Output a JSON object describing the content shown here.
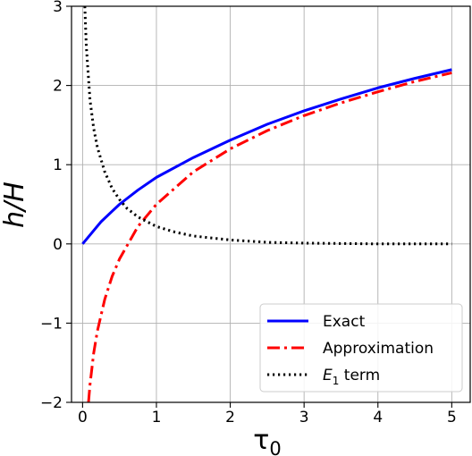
{
  "chart_data": {
    "type": "line",
    "xlabel": "τ",
    "xlabel_sub": "0",
    "ylabel": "h/H",
    "xlim": [
      -0.15,
      5.25
    ],
    "ylim": [
      -2,
      3
    ],
    "xticks": [
      0,
      1,
      2,
      3,
      4,
      5
    ],
    "yticks": [
      -2,
      -1,
      0,
      1,
      2,
      3
    ],
    "xtick_labels": [
      "0",
      "1",
      "2",
      "3",
      "4",
      "5"
    ],
    "ytick_labels": [
      "−2",
      "−1",
      "0",
      "1",
      "2",
      "3"
    ],
    "grid": true,
    "legend_position": "bottom-right",
    "series": [
      {
        "name": "Exact",
        "color": "#0000ff",
        "style": "solid",
        "x": [
          0,
          0.25,
          0.5,
          0.75,
          1.0,
          1.5,
          2.0,
          2.5,
          3.0,
          3.5,
          4.0,
          4.5,
          5.0
        ],
        "y": [
          0.0,
          0.28,
          0.5,
          0.68,
          0.84,
          1.09,
          1.31,
          1.51,
          1.68,
          1.83,
          1.97,
          2.09,
          2.2
        ]
      },
      {
        "name": "Approximation",
        "color": "#ff0000",
        "style": "dashdot",
        "x": [
          0.08,
          0.1,
          0.15,
          0.2,
          0.3,
          0.4,
          0.5,
          0.75,
          1.0,
          1.5,
          2.0,
          2.5,
          3.0,
          3.5,
          4.0,
          4.5,
          5.0
        ],
        "y": [
          -2.0,
          -1.78,
          -1.38,
          -1.1,
          -0.7,
          -0.41,
          -0.19,
          0.22,
          0.5,
          0.91,
          1.2,
          1.43,
          1.62,
          1.78,
          1.92,
          2.05,
          2.16
        ]
      },
      {
        "name": "E",
        "name_sub": "1",
        "name_suffix": " term",
        "color": "#000000",
        "style": "dotted",
        "x": [
          0.03,
          0.05,
          0.1,
          0.15,
          0.2,
          0.3,
          0.4,
          0.5,
          0.6,
          0.75,
          1.0,
          1.25,
          1.5,
          2.0,
          2.5,
          3.0,
          4.0,
          5.0
        ],
        "y": [
          3.0,
          2.5,
          1.82,
          1.46,
          1.22,
          0.91,
          0.7,
          0.56,
          0.45,
          0.34,
          0.22,
          0.15,
          0.1,
          0.05,
          0.02,
          0.01,
          0.0,
          0.0
        ]
      }
    ]
  }
}
